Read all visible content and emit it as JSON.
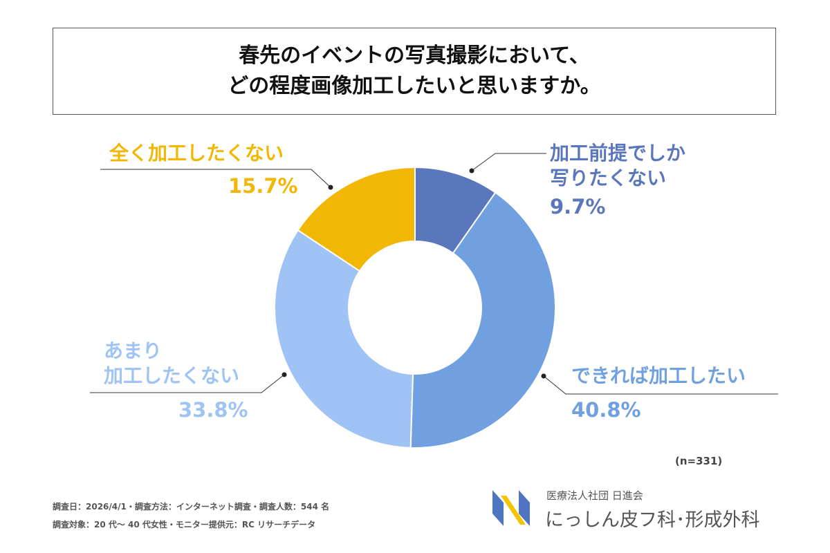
{
  "chart_data": {
    "type": "pie",
    "variant": "donut",
    "title": [
      "春先のイベントの写真撮影において、",
      "どの程度画像加工したいと思いますか。"
    ],
    "slices": [
      {
        "label": [
          "加工前提でしか",
          "写りたくない"
        ],
        "value": 9.7,
        "display": "9.7%",
        "color": "#5a76bd"
      },
      {
        "label": [
          "できれば加工したい"
        ],
        "value": 40.8,
        "display": "40.8%",
        "color": "#71a0e0"
      },
      {
        "label": [
          "あまり",
          "加工したくない"
        ],
        "value": 33.8,
        "display": "33.8%",
        "color": "#9ec3f4"
      },
      {
        "label": [
          "全く加工したくない"
        ],
        "value": 15.7,
        "display": "15.7%",
        "color": "#f2b705"
      }
    ],
    "sample_size": "(n=331)"
  },
  "footer": {
    "line1": "調査日：2026/4/1・調査方法：インターネット調査・調査人数：544 名",
    "line2": "調査対象：20 代～ 40 代女性・モニター提供元：RC リサーチデータ"
  },
  "logo": {
    "org": "医療法人社団 日進会",
    "name": "にっしん皮フ科･形成外科"
  }
}
